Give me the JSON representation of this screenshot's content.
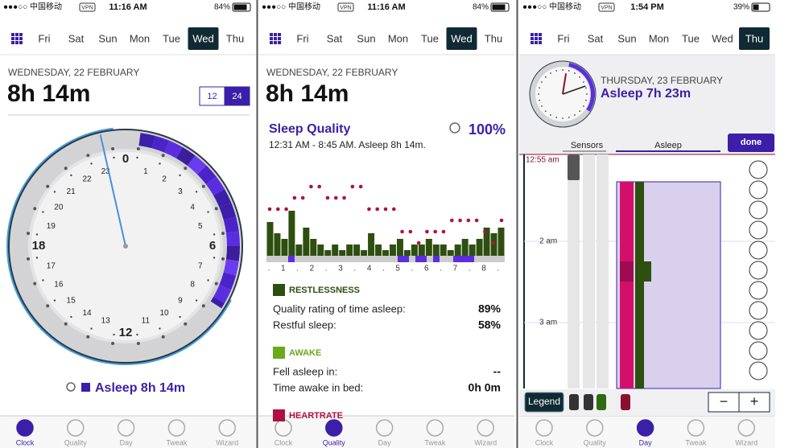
{
  "days": [
    "Fri",
    "Sat",
    "Sun",
    "Mon",
    "Tue",
    "Wed",
    "Thu"
  ],
  "tabs": [
    "Clock",
    "Quality",
    "Day",
    "Tweak",
    "Wizard"
  ],
  "screens": [
    {
      "status": {
        "carrier": "●●●○○ 中国移动",
        "vpn": "VPN",
        "time": "11:16 AM",
        "battery": "84%"
      },
      "date": "WEDNESDAY, 22 FEBRUARY",
      "duration": "8h 14m",
      "format_toggle": [
        "12",
        "24"
      ],
      "clock_hours": [
        0,
        1,
        2,
        3,
        4,
        5,
        6,
        7,
        8,
        9,
        10,
        11,
        12,
        13,
        14,
        15,
        16,
        17,
        18,
        19,
        20,
        21,
        22,
        23
      ],
      "asleep_label": "Asleep 8h 14m"
    },
    {
      "status": {
        "carrier": "●●●○○ 中国移动",
        "vpn": "VPN",
        "time": "11:16 AM",
        "battery": "84%"
      },
      "date": "WEDNESDAY, 22 FEBRUARY",
      "duration": "8h 14m",
      "quality": {
        "title": "Sleep Quality",
        "score": "100%",
        "range": "12:31 AM - 8:45 AM. Asleep 8h 14m.",
        "x_labels": [
          ".",
          "1",
          ".",
          "2",
          ".",
          "3",
          ".",
          "4",
          ".",
          "5",
          ".",
          "6",
          ".",
          "7",
          ".",
          "8",
          "."
        ],
        "restlessness": [
          6,
          4,
          3,
          8,
          2,
          5,
          3,
          2,
          1,
          2,
          1,
          2,
          2,
          1,
          4,
          2,
          1,
          2,
          3,
          1,
          2,
          2,
          3,
          2,
          2,
          1,
          2,
          3,
          2,
          3,
          5,
          4,
          5
        ],
        "heartrate": [
          5,
          5,
          5,
          6,
          6,
          7,
          7,
          6,
          6,
          6,
          7,
          7,
          5,
          5,
          5,
          5,
          3,
          3,
          2,
          3,
          3,
          3,
          4,
          4,
          4,
          4,
          3,
          2,
          4
        ],
        "sections": [
          {
            "title": "RESTLESSNESS",
            "rows": [
              [
                "Quality rating of time asleep:",
                "89%"
              ],
              [
                "Restful sleep:",
                "58%"
              ]
            ]
          },
          {
            "title": "AWAKE",
            "rows": [
              [
                "Fell asleep in:",
                "--"
              ],
              [
                "Time awake in bed:",
                "0h 0m"
              ]
            ]
          },
          {
            "title": "HEARTRATE",
            "rows": []
          }
        ]
      }
    },
    {
      "status": {
        "carrier": "●●●○○ 中国移动",
        "vpn": "VPN",
        "time": "1:54 PM",
        "battery": "39%"
      },
      "date": "THURSDAY, 23 FEBRUARY",
      "asleep_label": "Asleep 7h 23m",
      "inner_tabs": [
        "Sensors",
        "Asleep"
      ],
      "done": "done",
      "time_labels": [
        "12:55 am",
        "2 am",
        "3 am"
      ],
      "legend": "Legend",
      "zoom": [
        "−",
        "+"
      ]
    }
  ]
}
